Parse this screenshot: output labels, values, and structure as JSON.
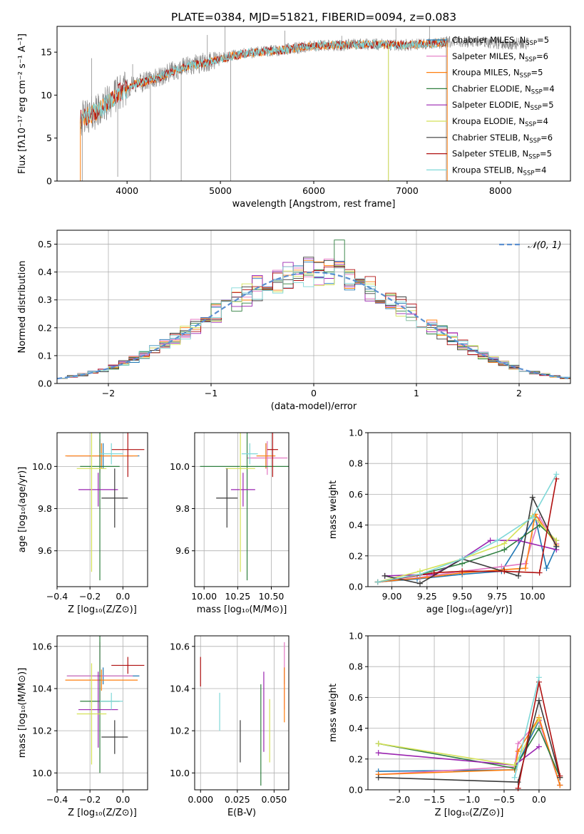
{
  "figure_title": "PLATE=0384, MJD=51821, FIBERID=0094, z=0.083",
  "colors": [
    "#1f77b4",
    "#e377c2",
    "#ff7f0e",
    "#2f7f3f",
    "#9a24b0",
    "#d4e157",
    "#3a3a3a",
    "#b01010",
    "#7fd8d8"
  ],
  "legend_labels": [
    {
      "text": "Chabrier MILES, N",
      "sub": "SSP",
      "tail": "=5"
    },
    {
      "text": "Salpeter MILES, N",
      "sub": "SSP",
      "tail": "=6"
    },
    {
      "text": "Kroupa MILES, N",
      "sub": "SSP",
      "tail": "=5"
    },
    {
      "text": "Chabrier ELODIE, N",
      "sub": "SSP",
      "tail": "=4"
    },
    {
      "text": "Salpeter ELODIE, N",
      "sub": "SSP",
      "tail": "=5"
    },
    {
      "text": "Kroupa ELODIE, N",
      "sub": "SSP",
      "tail": "=4"
    },
    {
      "text": "Chabrier STELIB, N",
      "sub": "SSP",
      "tail": "=6"
    },
    {
      "text": "Salpeter STELIB, N",
      "sub": "SSP",
      "tail": "=5"
    },
    {
      "text": "Kroupa STELIB, N",
      "sub": "SSP",
      "tail": "=4"
    }
  ],
  "chart_data": [
    {
      "id": "spectrum",
      "type": "line",
      "xlabel": "wavelength [Angstrom, rest frame]",
      "ylabel": "Flux [fλ10⁻¹⁷ erg cm⁻² s⁻¹ A⁻¹]",
      "xlim": [
        3250,
        8750
      ],
      "ylim": [
        0,
        18
      ],
      "xticks": [
        4000,
        5000,
        6000,
        7000,
        8000
      ],
      "yticks": [
        0,
        5,
        10,
        15
      ],
      "grid": false,
      "legend": "upper right",
      "continuum": [
        [
          3500,
          7.2
        ],
        [
          3700,
          8.2
        ],
        [
          3900,
          10.2
        ],
        [
          4100,
          11.3
        ],
        [
          4300,
          11.9
        ],
        [
          4500,
          12.8
        ],
        [
          4700,
          13.5
        ],
        [
          4900,
          13.9
        ],
        [
          5100,
          14.5
        ],
        [
          5300,
          14.9
        ],
        [
          5500,
          15.1
        ],
        [
          5700,
          15.3
        ],
        [
          5900,
          15.6
        ],
        [
          6100,
          15.8
        ],
        [
          6300,
          15.8
        ],
        [
          6500,
          15.9
        ],
        [
          6700,
          15.9
        ],
        [
          6900,
          15.8
        ],
        [
          7100,
          15.9
        ],
        [
          7300,
          16.0
        ],
        [
          7500,
          16.2
        ],
        [
          7700,
          16.2
        ],
        [
          7900,
          16.1
        ],
        [
          8100,
          16.0
        ],
        [
          8300,
          16.0
        ]
      ],
      "spikes_down": [
        [
          3520,
          0
        ],
        [
          3900,
          0.5
        ],
        [
          4250,
          0
        ],
        [
          4580,
          0
        ],
        [
          5110,
          0
        ],
        [
          6800,
          0
        ],
        [
          7420,
          0
        ]
      ],
      "spikes_up": [
        [
          3620,
          14.3
        ],
        [
          4060,
          13.6
        ],
        [
          4860,
          17.0
        ],
        [
          5050,
          18.0
        ],
        [
          5690,
          17.5
        ],
        [
          6300,
          16.9
        ],
        [
          6880,
          17.8
        ],
        [
          7240,
          18.0
        ]
      ],
      "model_x_range": [
        3500,
        7430
      ]
    },
    {
      "id": "residuals",
      "type": "histogram",
      "xlabel": "(data-model)/error",
      "ylabel": "Normed distribution",
      "xlim": [
        -2.5,
        2.5
      ],
      "ylim": [
        0,
        0.55
      ],
      "xticks": [
        -2,
        -1,
        0,
        1,
        2
      ],
      "yticks": [
        0.0,
        0.1,
        0.2,
        0.3,
        0.4,
        0.5
      ],
      "grid": true,
      "legend": "upper right",
      "reference_label": "𝒩(0, 1)",
      "bin_width": 0.1
    },
    {
      "id": "age_vs_Z",
      "type": "errorbar",
      "xlabel": "Z [log₁₀(Z/Z⊙)]",
      "ylabel": "age  [log₁₀(age/yr)]",
      "xlim": [
        -0.4,
        0.15
      ],
      "ylim": [
        9.43,
        10.16
      ],
      "xticks": [
        -0.4,
        -0.2,
        0.0
      ],
      "yticks": [
        9.6,
        9.8,
        10.0
      ],
      "grid": true,
      "points": [
        {
          "x": -0.12,
          "y": 10.05,
          "xerr": 0.22,
          "yerr": 0.06,
          "c": 0
        },
        {
          "x": -0.14,
          "y": 10.05,
          "xerr": 0.2,
          "yerr": 0.08,
          "c": 1
        },
        {
          "x": -0.13,
          "y": 10.05,
          "xerr": 0.22,
          "yerr": 0.06,
          "c": 2
        },
        {
          "x": -0.14,
          "y": 10.0,
          "xerr": 0.12,
          "yerr": 0.54,
          "c": 3
        },
        {
          "x": -0.15,
          "y": 9.89,
          "xerr": 0.12,
          "yerr": 0.08,
          "c": 4
        },
        {
          "x": -0.19,
          "y": 9.99,
          "xerr": 0.09,
          "yerr": 0.49,
          "c": 5
        },
        {
          "x": -0.05,
          "y": 9.85,
          "xerr": 0.08,
          "yerr": 0.14,
          "c": 6
        },
        {
          "x": 0.03,
          "y": 10.08,
          "xerr": 0.1,
          "yerr": 0.13,
          "c": 7
        },
        {
          "x": -0.07,
          "y": 10.06,
          "xerr": 0.07,
          "yerr": 0.05,
          "c": 8
        }
      ]
    },
    {
      "id": "age_vs_mass",
      "type": "errorbar",
      "xlabel": "mass [log₁₀(M/M⊙)]",
      "ylabel": "",
      "xlim": [
        9.93,
        10.63
      ],
      "ylim": [
        9.43,
        10.16
      ],
      "xticks": [
        10.0,
        10.25,
        10.5
      ],
      "yticks": [
        9.6,
        9.8,
        10.0
      ],
      "grid": true,
      "points": [
        {
          "x": 10.46,
          "y": 10.05,
          "xerr": 0.07,
          "yerr": 0.06,
          "c": 0
        },
        {
          "x": 10.47,
          "y": 10.04,
          "xerr": 0.15,
          "yerr": 0.08,
          "c": 1
        },
        {
          "x": 10.46,
          "y": 10.05,
          "xerr": 0.07,
          "yerr": 0.06,
          "c": 2
        },
        {
          "x": 10.32,
          "y": 10.0,
          "xerr": 0.35,
          "yerr": 0.54,
          "c": 3
        },
        {
          "x": 10.29,
          "y": 9.89,
          "xerr": 0.09,
          "yerr": 0.08,
          "c": 4
        },
        {
          "x": 10.27,
          "y": 9.99,
          "xerr": 0.11,
          "yerr": 0.49,
          "c": 5
        },
        {
          "x": 10.17,
          "y": 9.85,
          "xerr": 0.08,
          "yerr": 0.14,
          "c": 6
        },
        {
          "x": 10.51,
          "y": 10.08,
          "xerr": 0.04,
          "yerr": 0.13,
          "c": 7
        },
        {
          "x": 10.34,
          "y": 10.06,
          "xerr": 0.06,
          "yerr": 0.05,
          "c": 8
        }
      ]
    },
    {
      "id": "massweight_vs_age",
      "type": "line",
      "xlabel": "age  [log₁₀(age/yr)]",
      "ylabel": "mass weight",
      "xlim": [
        8.83,
        10.27
      ],
      "ylim": [
        0.0,
        1.0
      ],
      "xticks": [
        9.0,
        9.25,
        9.5,
        9.75,
        10.0
      ],
      "yticks": [
        0.0,
        0.2,
        0.4,
        0.6,
        0.8,
        1.0
      ],
      "grid": true,
      "series": [
        {
          "c": 0,
          "x": [
            8.9,
            9.18,
            9.5,
            9.78,
            10.02,
            10.1,
            10.17
          ],
          "y": [
            0.03,
            0.05,
            0.08,
            0.1,
            0.45,
            0.12,
            0.26
          ]
        },
        {
          "c": 1,
          "x": [
            8.9,
            9.2,
            9.5,
            9.78,
            9.95,
            10.05,
            10.17
          ],
          "y": [
            0.03,
            0.06,
            0.1,
            0.13,
            0.15,
            0.45,
            0.28
          ]
        },
        {
          "c": 2,
          "x": [
            8.9,
            9.25,
            9.5,
            9.8,
            9.95,
            10.02,
            10.17
          ],
          "y": [
            0.03,
            0.06,
            0.09,
            0.11,
            0.12,
            0.47,
            0.27
          ]
        },
        {
          "c": 3,
          "x": [
            8.9,
            9.2,
            9.5,
            9.8,
            10.05,
            10.17
          ],
          "y": [
            0.03,
            0.08,
            0.15,
            0.24,
            0.4,
            0.3
          ]
        },
        {
          "c": 4,
          "x": [
            8.95,
            9.3,
            9.5,
            9.7,
            9.9,
            10.17
          ],
          "y": [
            0.07,
            0.08,
            0.18,
            0.3,
            0.3,
            0.24
          ]
        },
        {
          "c": 5,
          "x": [
            8.9,
            9.2,
            9.5,
            9.8,
            10.0,
            10.17
          ],
          "y": [
            0.03,
            0.1,
            0.18,
            0.28,
            0.46,
            0.3
          ]
        },
        {
          "c": 6,
          "x": [
            8.95,
            9.2,
            9.5,
            9.9,
            10.0,
            10.17
          ],
          "y": [
            0.07,
            0.02,
            0.18,
            0.07,
            0.58,
            0.26
          ]
        },
        {
          "c": 7,
          "x": [
            8.9,
            9.3,
            9.5,
            9.8,
            10.05,
            10.17
          ],
          "y": [
            0.03,
            0.09,
            0.1,
            0.1,
            0.09,
            0.7
          ]
        },
        {
          "c": 8,
          "x": [
            8.9,
            9.2,
            9.5,
            9.75,
            10.0,
            10.17
          ],
          "y": [
            0.03,
            0.08,
            0.18,
            0.3,
            0.45,
            0.73
          ]
        }
      ]
    },
    {
      "id": "mass_vs_Z",
      "type": "errorbar",
      "xlabel": "Z [log₁₀(Z/Z⊙)]",
      "ylabel": "mass [log₁₀(M/M⊙)]",
      "xlim": [
        -0.4,
        0.15
      ],
      "ylim": [
        9.92,
        10.65
      ],
      "xticks": [
        -0.4,
        -0.2,
        0.0
      ],
      "yticks": [
        10.0,
        10.2,
        10.4,
        10.6
      ],
      "grid": true,
      "points": [
        {
          "x": -0.12,
          "y": 10.46,
          "xerr": 0.22,
          "yerr": 0.04,
          "c": 0
        },
        {
          "x": -0.14,
          "y": 10.46,
          "xerr": 0.2,
          "yerr": 0.16,
          "c": 1
        },
        {
          "x": -0.13,
          "y": 10.44,
          "xerr": 0.22,
          "yerr": 0.05,
          "c": 2
        },
        {
          "x": -0.14,
          "y": 10.34,
          "xerr": 0.12,
          "yerr": 0.34,
          "c": 3
        },
        {
          "x": -0.15,
          "y": 10.3,
          "xerr": 0.12,
          "yerr": 0.18,
          "c": 4
        },
        {
          "x": -0.19,
          "y": 10.28,
          "xerr": 0.09,
          "yerr": 0.24,
          "c": 5
        },
        {
          "x": -0.05,
          "y": 10.17,
          "xerr": 0.08,
          "yerr": 0.08,
          "c": 6
        },
        {
          "x": 0.03,
          "y": 10.51,
          "xerr": 0.1,
          "yerr": 0.04,
          "c": 7
        },
        {
          "x": -0.07,
          "y": 10.34,
          "xerr": 0.07,
          "yerr": 0.04,
          "c": 8
        }
      ]
    },
    {
      "id": "mass_vs_ebv",
      "type": "errorbar",
      "xlabel": "E(B-V)",
      "ylabel": "",
      "xlim": [
        -0.004,
        0.06
      ],
      "ylim": [
        9.92,
        10.65
      ],
      "xticks": [
        0.0,
        0.025,
        0.05
      ],
      "yticks": [
        10.0,
        10.2,
        10.4,
        10.6
      ],
      "grid": true,
      "points": [
        {
          "x": 0.057,
          "y": 10.46,
          "xerr": 0,
          "yerr": 0.04,
          "c": 0
        },
        {
          "x": 0.057,
          "y": 10.46,
          "xerr": 0,
          "yerr": 0.16,
          "c": 1
        },
        {
          "x": 0.057,
          "y": 10.37,
          "xerr": 0,
          "yerr": 0.13,
          "c": 2
        },
        {
          "x": 0.041,
          "y": 10.18,
          "xerr": 0,
          "yerr": 0.24,
          "c": 3
        },
        {
          "x": 0.043,
          "y": 10.29,
          "xerr": 0,
          "yerr": 0.19,
          "c": 4
        },
        {
          "x": 0.047,
          "y": 10.2,
          "xerr": 0,
          "yerr": 0.15,
          "c": 5
        },
        {
          "x": 0.027,
          "y": 10.15,
          "xerr": 0,
          "yerr": 0.1,
          "c": 6
        },
        {
          "x": 0.0,
          "y": 10.48,
          "xerr": 0,
          "yerr": 0.07,
          "c": 7
        },
        {
          "x": 0.013,
          "y": 10.29,
          "xerr": 0,
          "yerr": 0.09,
          "c": 8
        }
      ]
    },
    {
      "id": "massweight_vs_Z",
      "type": "line",
      "xlabel": "Z [log₁₀(Z/Z⊙)]",
      "ylabel": "mass weight",
      "xlim": [
        -2.45,
        0.45
      ],
      "ylim": [
        0.0,
        1.0
      ],
      "xticks": [
        -2.0,
        -1.5,
        -1.0,
        -0.5,
        0.0
      ],
      "yticks": [
        0.0,
        0.2,
        0.4,
        0.6,
        0.8,
        1.0
      ],
      "grid": true,
      "series": [
        {
          "c": 0,
          "x": [
            -2.3,
            -0.35,
            0.0,
            0.3
          ],
          "y": [
            0.12,
            0.13,
            0.45,
            0.03
          ]
        },
        {
          "c": 1,
          "x": [
            -2.3,
            -0.35,
            -0.3,
            0.0,
            0.3
          ],
          "y": [
            0.1,
            0.15,
            0.3,
            0.45,
            0.03
          ]
        },
        {
          "c": 2,
          "x": [
            -2.3,
            -0.35,
            -0.3,
            0.0,
            0.3
          ],
          "y": [
            0.1,
            0.13,
            0.25,
            0.47,
            0.03
          ]
        },
        {
          "c": 3,
          "x": [
            -2.3,
            -0.35,
            0.0,
            0.3
          ],
          "y": [
            0.3,
            0.14,
            0.4,
            0.08
          ]
        },
        {
          "c": 4,
          "x": [
            -2.3,
            -0.35,
            0.0
          ],
          "y": [
            0.24,
            0.16,
            0.28
          ]
        },
        {
          "c": 5,
          "x": [
            -2.3,
            -0.35,
            0.0
          ],
          "y": [
            0.3,
            0.16,
            0.46
          ]
        },
        {
          "c": 6,
          "x": [
            -2.3,
            -0.3,
            0.0,
            0.3
          ],
          "y": [
            0.08,
            0.05,
            0.58,
            0.08
          ]
        },
        {
          "c": 7,
          "x": [
            -0.3,
            0.0,
            0.3
          ],
          "y": [
            0.01,
            0.7,
            0.09
          ]
        },
        {
          "c": 8,
          "x": [
            -0.35,
            0.0
          ],
          "y": [
            0.08,
            0.73
          ]
        }
      ]
    }
  ]
}
